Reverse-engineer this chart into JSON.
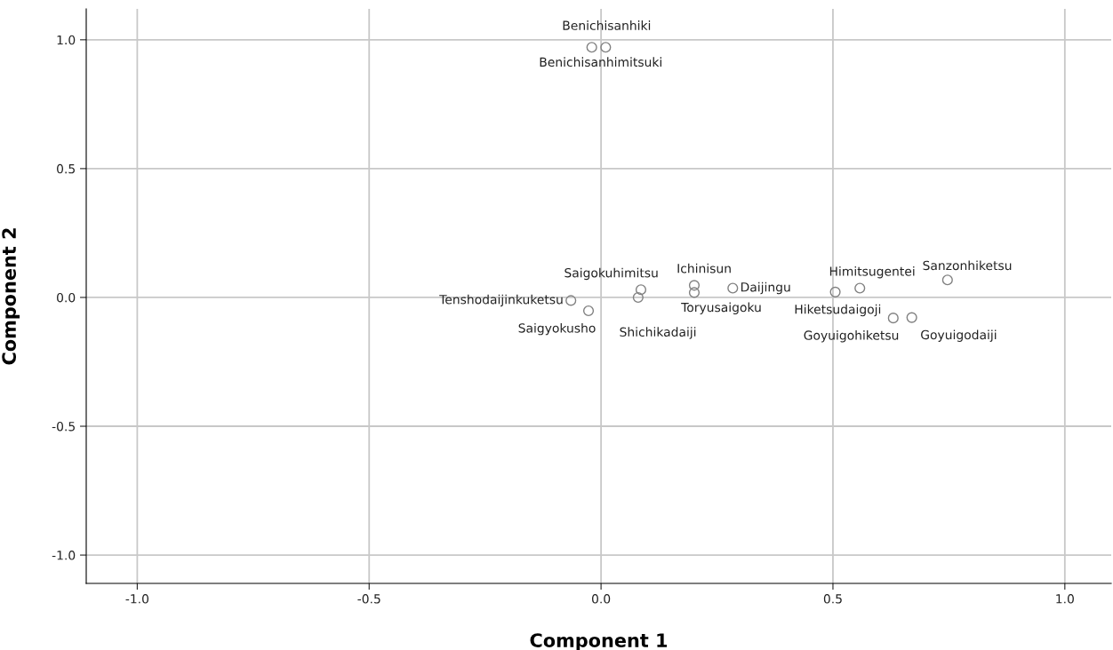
{
  "chart_data": {
    "type": "scatter",
    "xlabel": "Component 1",
    "ylabel": "Component 2",
    "x": [
      -0.02,
      0.01,
      -0.065,
      -0.027,
      0.086,
      0.08,
      0.201,
      0.201,
      0.284,
      0.505,
      0.558,
      0.63,
      0.67,
      0.747
    ],
    "values": [
      0.971,
      0.971,
      -0.012,
      -0.052,
      0.03,
      0.0,
      0.047,
      0.019,
      0.036,
      0.021,
      0.036,
      -0.08,
      -0.078,
      0.068
    ],
    "color": "#808080",
    "marker": "circle",
    "grid": true,
    "xlim": [
      -1.11,
      1.1
    ],
    "ylim": [
      -1.11,
      1.12
    ],
    "xticks": [
      {
        "value": -1.0,
        "label": "-1.0"
      },
      {
        "value": -0.5,
        "label": "-0.5"
      },
      {
        "value": 0.0,
        "label": "0.0"
      },
      {
        "value": 0.5,
        "label": "0.5"
      },
      {
        "value": 1.0,
        "label": "1.0"
      }
    ],
    "yticks": [
      {
        "value": -1.0,
        "label": "-1.0"
      },
      {
        "value": -0.5,
        "label": "-0.5"
      },
      {
        "value": 0.0,
        "label": "0.0"
      },
      {
        "value": 0.5,
        "label": "0.5"
      },
      {
        "value": 1.0,
        "label": "1.0"
      }
    ],
    "annotations": [
      {
        "text": "Benichisanhiki",
        "x": -0.02,
        "y": 0.971
      },
      {
        "text": "Benichisanhimitsuki",
        "x": 0.01,
        "y": 0.971
      },
      {
        "text": "Tenshodaijinkuketsu",
        "x": -0.065,
        "y": -0.012
      },
      {
        "text": "Saigyokusho",
        "x": -0.027,
        "y": -0.052
      },
      {
        "text": "Saigokuhimitsu",
        "x": 0.086,
        "y": 0.03
      },
      {
        "text": "Shichikadaiji",
        "x": 0.08,
        "y": 0.0
      },
      {
        "text": "Ichinisun",
        "x": 0.201,
        "y": 0.047
      },
      {
        "text": "Toryusaigoku",
        "x": 0.201,
        "y": 0.019
      },
      {
        "text": "Daijingu",
        "x": 0.284,
        "y": 0.036
      },
      {
        "text": "Hiketsudaigoji",
        "x": 0.505,
        "y": 0.021
      },
      {
        "text": "Himitsugentei",
        "x": 0.558,
        "y": 0.036
      },
      {
        "text": "Goyuigohiketsu",
        "x": 0.63,
        "y": -0.08
      },
      {
        "text": "Goyuigodaiji",
        "x": 0.67,
        "y": -0.078
      },
      {
        "text": "Sanzonhiketsu",
        "x": 0.747,
        "y": 0.068
      }
    ]
  }
}
